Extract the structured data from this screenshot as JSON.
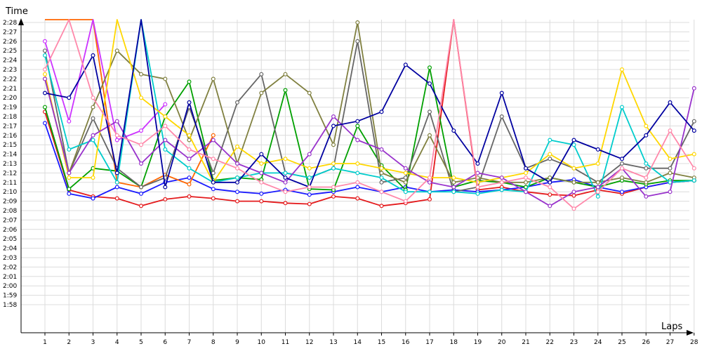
{
  "chart_data": {
    "type": "line",
    "title": "",
    "xlabel": "Laps",
    "ylabel": "Time",
    "x": [
      1,
      2,
      3,
      4,
      5,
      6,
      7,
      8,
      9,
      10,
      11,
      12,
      13,
      14,
      15,
      16,
      17,
      18,
      19,
      20,
      21,
      22,
      23,
      24,
      25,
      26,
      27,
      28
    ],
    "y_ticks": [
      "1:58",
      "1:59",
      "2:00",
      "2:01",
      "2:02",
      "2:03",
      "2:04",
      "2:05",
      "2:06",
      "2:07",
      "2:08",
      "2:09",
      "2:10",
      "2:11",
      "2:12",
      "2:13",
      "2:14",
      "2:15",
      "2:16",
      "2:17",
      "2:18",
      "2:19",
      "2:20",
      "2:21",
      "2:22",
      "2:23",
      "2:24",
      "2:25",
      "2:26",
      "2:27",
      "2:28"
    ],
    "ylim_seconds": [
      117.5,
      149
    ],
    "grid": true,
    "legend": "none",
    "series": [
      {
        "color": "#e41a1c",
        "values": [
          138.5,
          130.2,
          129.5,
          129.3,
          128.5,
          129.2,
          129.5,
          129.3,
          129.0,
          129.0,
          128.8,
          128.7,
          129.5,
          129.3,
          128.5,
          128.8,
          129.2,
          150,
          130.2,
          130.5,
          130.0,
          129.7,
          129.6,
          130.2,
          129.8,
          130.5,
          131.0,
          131.2
        ]
      },
      {
        "color": "#1a1aff",
        "values": [
          137.3,
          129.8,
          129.3,
          130.5,
          129.8,
          131.0,
          131.5,
          130.3,
          130.0,
          129.8,
          130.2,
          129.7,
          130.0,
          130.5,
          130.0,
          130.5,
          130.0,
          130.2,
          130.0,
          130.2,
          130.5,
          131.0,
          131.3,
          130.5,
          130.0,
          130.5,
          131.0,
          131.2
        ]
      },
      {
        "color": "#00a000",
        "values": [
          139,
          130.3,
          132.5,
          132.2,
          130.5,
          138.0,
          141.7,
          131.2,
          131.5,
          131.3,
          140.8,
          130.3,
          130.2,
          137.0,
          132.8,
          130.2,
          143.2,
          130.5,
          131.2,
          131.0,
          130.5,
          131.5,
          131.0,
          130.5,
          131.2,
          130.8,
          131.2,
          131.2
        ]
      },
      {
        "color": "#ff6600",
        "values": [
          148.5,
          150,
          148.5,
          131.0,
          130.5,
          131.8,
          130.8,
          136.0,
          null,
          null,
          null,
          null,
          null,
          null,
          null,
          null,
          null,
          null,
          null,
          null,
          null,
          null,
          null,
          null,
          null,
          null,
          null,
          null
        ]
      },
      {
        "color": "#cc33ff",
        "values": [
          146.0,
          137.5,
          148.5,
          135.5,
          136.5,
          139.3,
          null,
          null,
          null,
          null,
          null,
          null,
          null,
          null,
          null,
          null,
          null,
          null,
          null,
          null,
          null,
          null,
          null,
          null,
          null,
          null,
          null,
          null
        ]
      },
      {
        "color": "#666666",
        "values": [
          145.0,
          132.0,
          137.8,
          132.5,
          130.5,
          131.5,
          139.0,
          132.0,
          139.5,
          142.5,
          132.0,
          131.5,
          132.5,
          146.0,
          131.0,
          131.5,
          138.5,
          130.0,
          130.5,
          138.0,
          132.5,
          133.5,
          132.5,
          131.0,
          133.0,
          132.5,
          132.5,
          137.5
        ]
      },
      {
        "color": "#808040",
        "values": [
          142.0,
          132.0,
          139.0,
          145.0,
          142.5,
          142.0,
          135.5,
          142.0,
          133.0,
          140.5,
          142.5,
          140.5,
          135.0,
          148.0,
          132.0,
          131.0,
          136.0,
          131.0,
          131.5,
          131.0,
          131.0,
          131.5,
          131.0,
          131.0,
          131.5,
          131.0,
          132.0,
          131.5
        ]
      },
      {
        "color": "#00cccc",
        "values": [
          144.5,
          134.5,
          135.5,
          131.0,
          148.5,
          134.5,
          132.5,
          131.0,
          131.5,
          132.0,
          132.0,
          131.5,
          132.5,
          132.0,
          131.5,
          130.0,
          130.0,
          130.0,
          129.8,
          130.2,
          130.0,
          135.5,
          135.0,
          129.5,
          139.0,
          133.0,
          131.0,
          131.2
        ]
      },
      {
        "color": "#ffd700",
        "values": [
          142.5,
          131.5,
          131.5,
          150,
          140.0,
          138.0,
          136.0,
          131.0,
          134.8,
          133.0,
          133.5,
          132.5,
          133.0,
          133.0,
          132.5,
          132.0,
          131.5,
          131.5,
          131.0,
          131.5,
          132.0,
          134.0,
          132.5,
          133.0,
          143.0,
          137.0,
          133.5,
          134.0
        ]
      },
      {
        "color": "#9933cc",
        "values": [
          142.0,
          132.0,
          136.0,
          137.5,
          133.0,
          135.5,
          133.5,
          135.5,
          133.0,
          132.0,
          131.0,
          134.0,
          138.0,
          135.5,
          134.5,
          132.5,
          131.0,
          130.5,
          132.0,
          131.5,
          130.0,
          128.5,
          130.0,
          130.5,
          132.5,
          129.5,
          130.0,
          141.0
        ]
      },
      {
        "color": "#0000a0",
        "values": [
          140.5,
          140.0,
          144.5,
          132.0,
          150,
          130.5,
          139.5,
          131.0,
          131.0,
          134.0,
          131.5,
          130.5,
          137.0,
          137.5,
          138.5,
          143.5,
          141.5,
          136.5,
          133.0,
          140.5,
          132.5,
          131.0,
          135.5,
          134.5,
          133.5,
          136.0,
          139.5,
          136.5
        ]
      },
      {
        "color": "#ff88aa",
        "values": [
          143.0,
          148.5,
          140.0,
          136.0,
          135.0,
          137.0,
          134.5,
          133.5,
          132.5,
          131.0,
          130.0,
          130.5,
          130.5,
          131.0,
          130.0,
          129.0,
          131.5,
          150,
          130.5,
          131.0,
          131.5,
          130.5,
          128.2,
          130.0,
          132.5,
          131.5,
          136.5,
          132.5
        ]
      }
    ]
  }
}
